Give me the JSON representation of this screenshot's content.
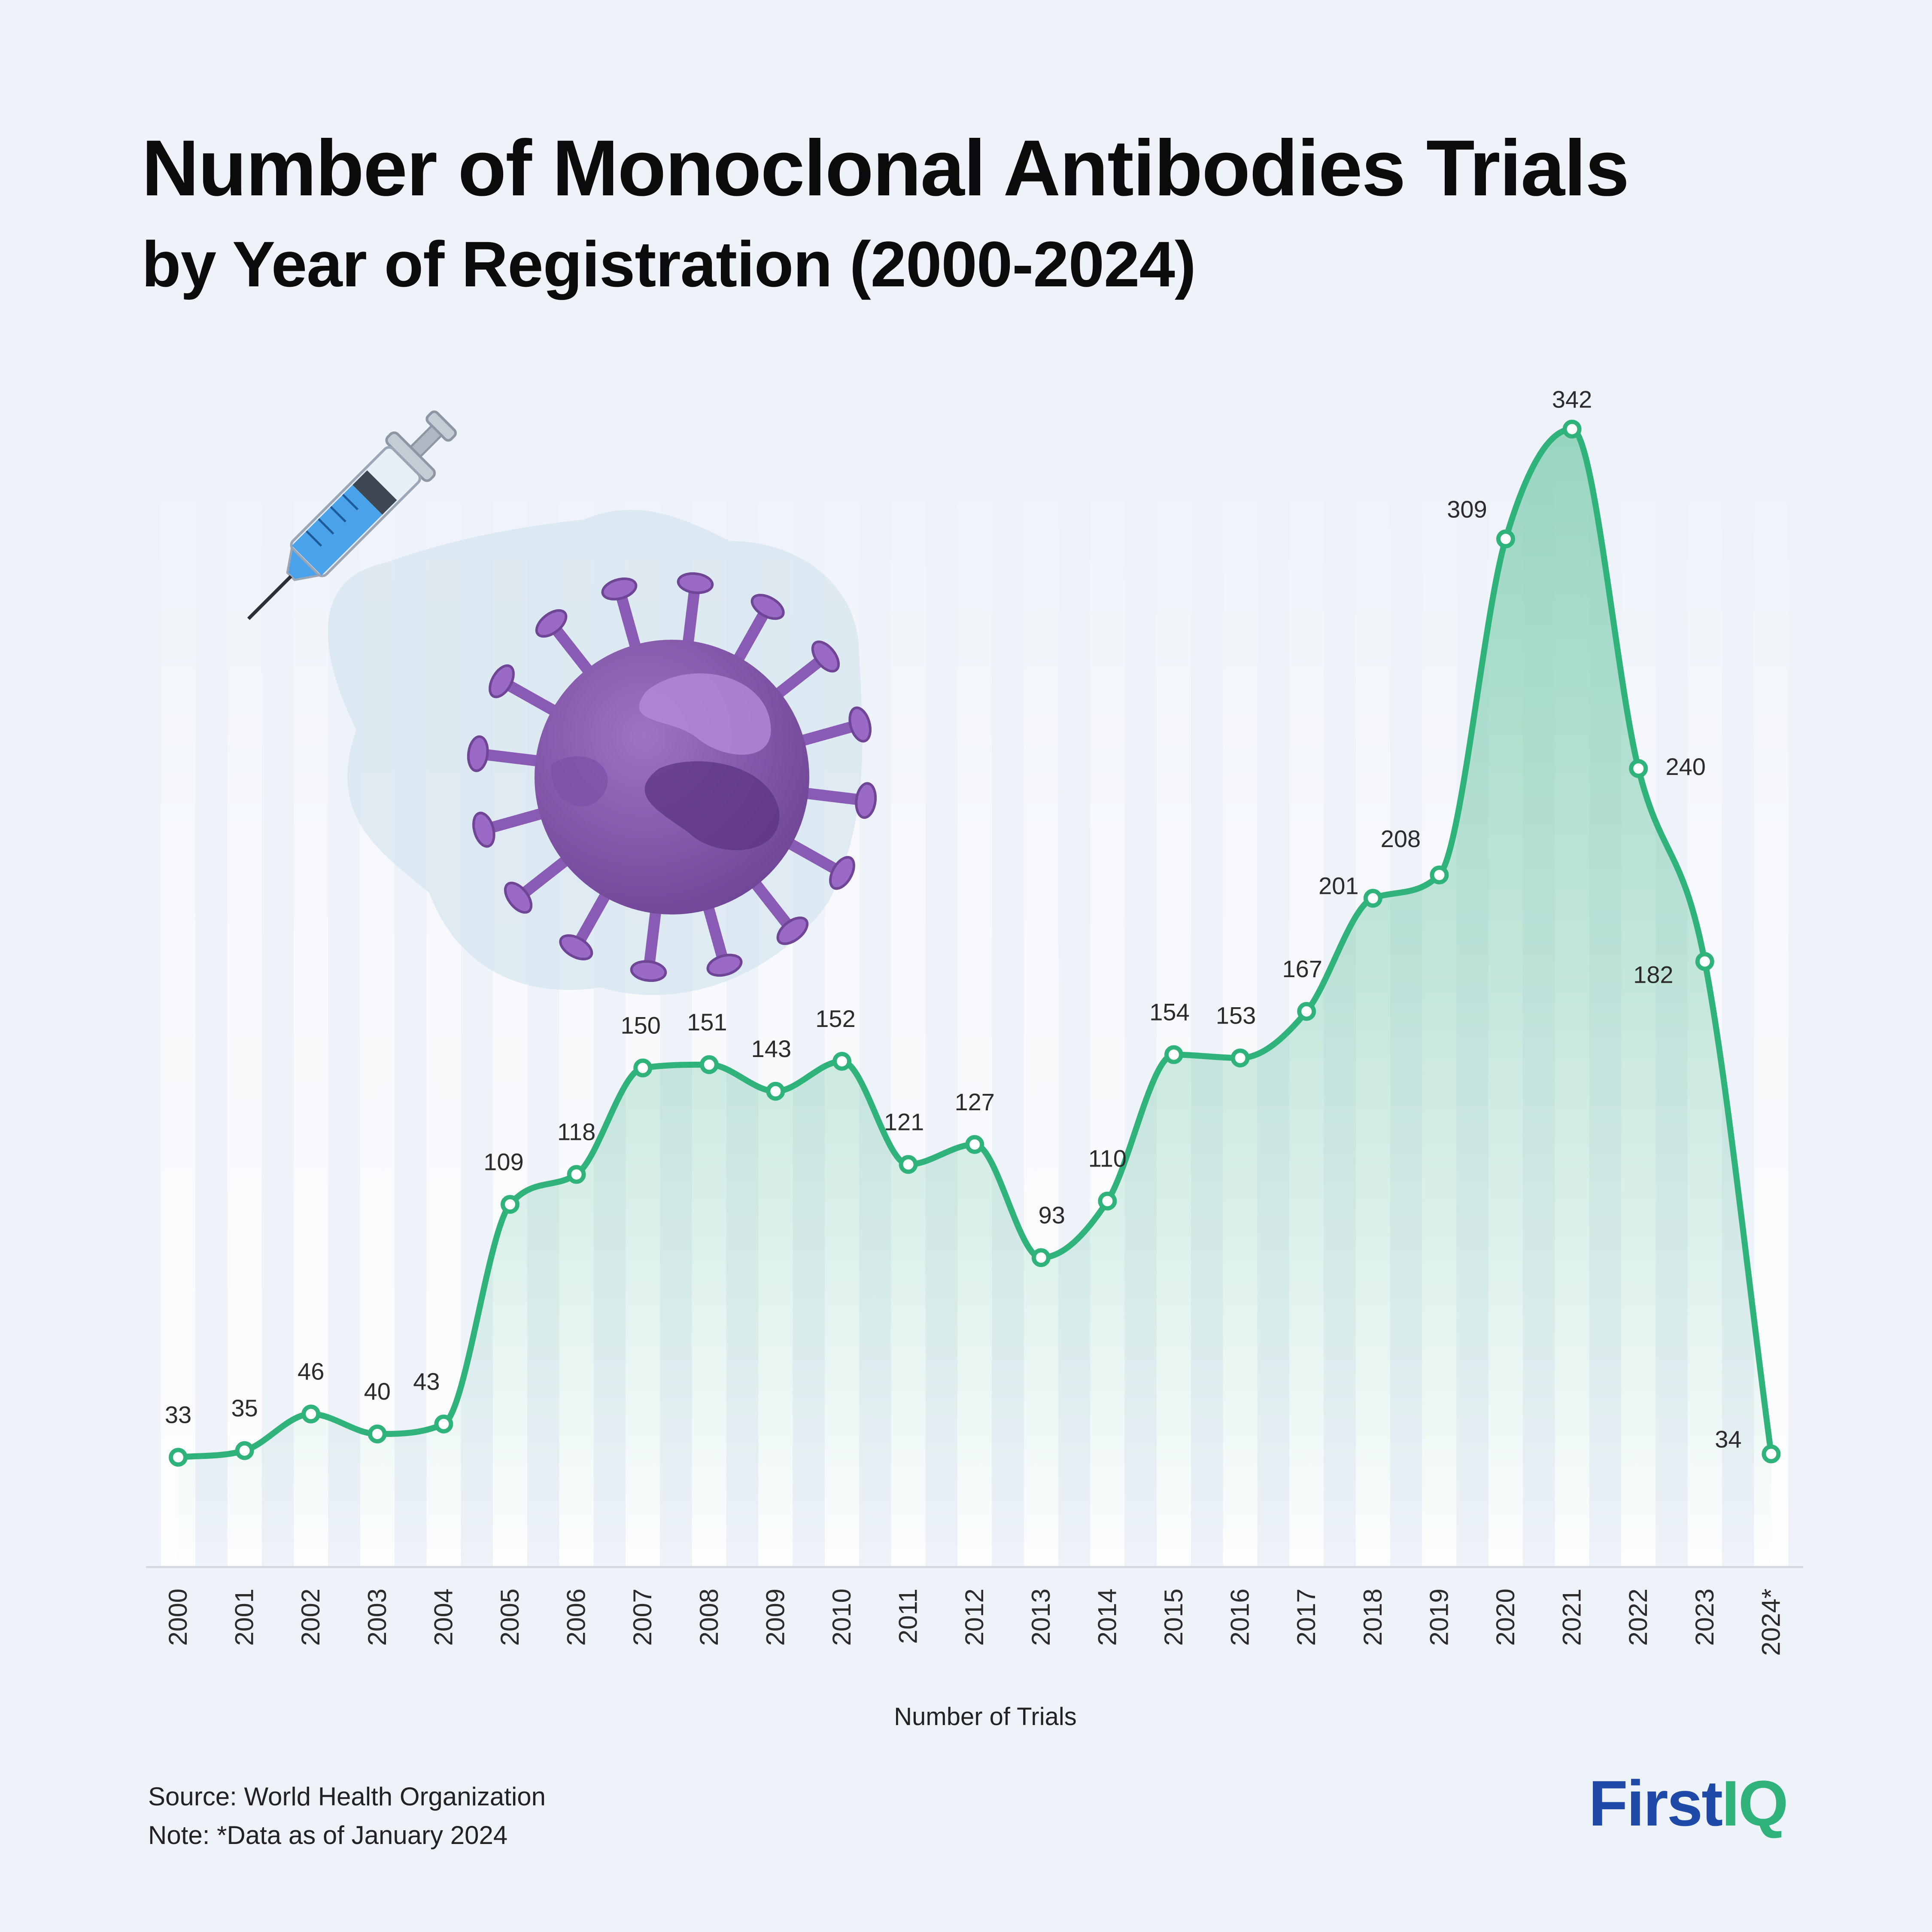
{
  "header": {
    "title": "Number of Monoclonal Antibodies Trials",
    "subtitle": "by Year of Registration (2000-2024)"
  },
  "footer": {
    "source": "Source: World Health Organization",
    "note": "Note: *Data as of January 2024"
  },
  "brand": {
    "part1": "First",
    "part2": "IQ",
    "color1": "#1f4aa8",
    "color2": "#2fb37a"
  },
  "illustration": {
    "icons": [
      "syringe-icon",
      "virus-icon"
    ]
  },
  "colors": {
    "line": "#2fb37a",
    "area": "#8fd9b6",
    "background": "#eef2f9",
    "stripe": "#ffffff"
  },
  "chart_data": {
    "type": "area",
    "xlabel": "Number of Trials",
    "ylabel": "",
    "categories": [
      "2000",
      "2001",
      "2002",
      "2003",
      "2004",
      "2005",
      "2006",
      "2007",
      "2008",
      "2009",
      "2010",
      "2011",
      "2012",
      "2013",
      "2014",
      "2015",
      "2016",
      "2017",
      "2018",
      "2019",
      "2020",
      "2021",
      "2022",
      "2023",
      "2024*"
    ],
    "values": [
      33,
      35,
      46,
      40,
      43,
      109,
      118,
      150,
      151,
      143,
      152,
      121,
      127,
      93,
      110,
      154,
      153,
      167,
      201,
      208,
      309,
      342,
      240,
      182,
      34
    ],
    "ylim": [
      0,
      350
    ],
    "smooth": true,
    "markers": "hollow-circle",
    "data_labels": true,
    "grid": false,
    "legend": "none"
  }
}
